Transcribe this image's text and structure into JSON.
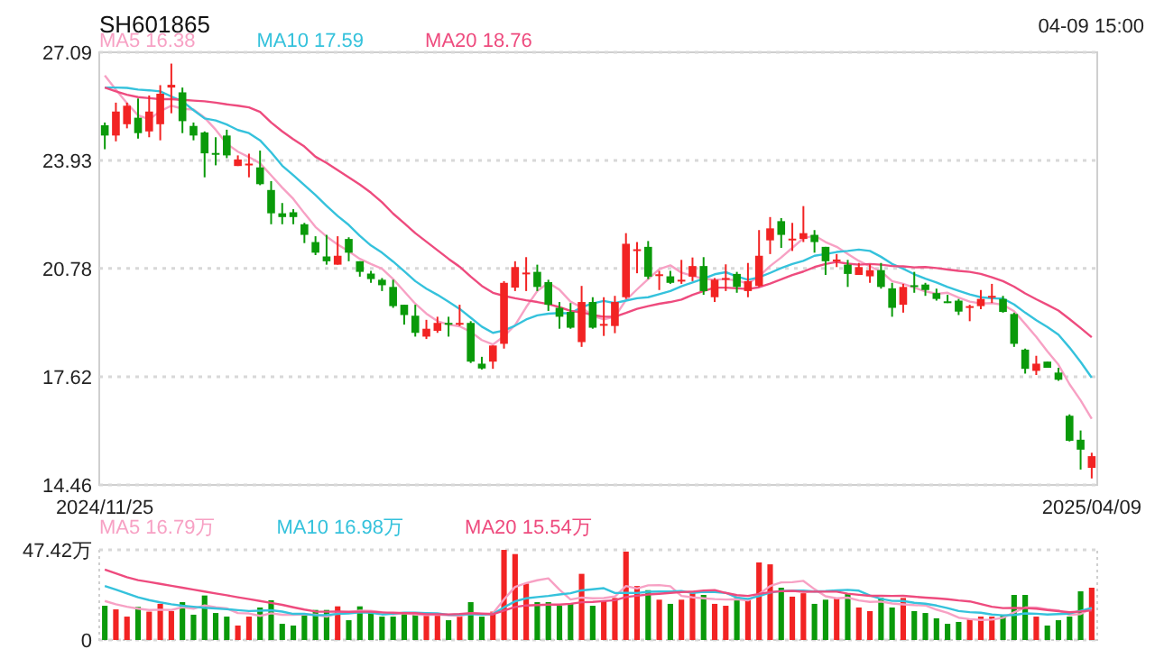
{
  "chart_data": [
    {
      "type": "candlestick",
      "title": "SH601865",
      "annotations": [
        "04-09 15:00"
      ],
      "legend": "top left",
      "grid": "y",
      "categories": [
        "2024/11/25",
        null,
        null,
        null,
        null,
        null,
        null,
        null,
        null,
        null,
        null,
        null,
        null,
        null,
        null,
        null,
        null,
        null,
        null,
        null,
        null,
        null,
        null,
        null,
        null,
        null,
        null,
        null,
        null,
        null,
        null,
        null,
        null,
        null,
        null,
        null,
        null,
        null,
        null,
        null,
        null,
        null,
        null,
        null,
        null,
        null,
        null,
        null,
        null,
        null,
        null,
        null,
        null,
        null,
        null,
        null,
        null,
        null,
        null,
        null,
        null,
        null,
        null,
        null,
        null,
        null,
        null,
        null,
        null,
        null,
        null,
        null,
        null,
        null,
        null,
        null,
        null,
        null,
        null,
        null,
        null,
        null,
        null,
        null,
        null,
        null,
        null,
        null,
        null,
        "2025/04/09"
      ],
      "ylim": [
        14.46,
        27.09
      ],
      "yticks": [
        14.46,
        17.62,
        20.78,
        23.93,
        27.09
      ],
      "ohlc": [
        [
          24.96,
          25.04,
          24.26,
          24.66
        ],
        [
          24.66,
          25.62,
          24.49,
          25.36
        ],
        [
          24.99,
          25.62,
          24.87,
          25.53
        ],
        [
          25.18,
          25.74,
          24.57,
          24.73
        ],
        [
          24.78,
          25.83,
          24.61,
          25.36
        ],
        [
          24.99,
          26.13,
          24.52,
          25.88
        ],
        [
          26.06,
          26.76,
          25.31,
          26.14
        ],
        [
          25.92,
          26.06,
          24.73,
          25.08
        ],
        [
          24.94,
          25.04,
          24.52,
          24.66
        ],
        [
          24.75,
          24.78,
          23.44,
          24.14
        ],
        [
          24.15,
          24.61,
          23.79,
          24.13
        ],
        [
          24.66,
          24.83,
          24.0,
          24.08
        ],
        [
          23.77,
          24.08,
          23.77,
          23.96
        ],
        [
          23.82,
          24.13,
          23.44,
          23.84
        ],
        [
          23.73,
          24.22,
          23.21,
          23.24
        ],
        [
          23.07,
          23.33,
          22.07,
          22.39
        ],
        [
          22.39,
          22.69,
          22.07,
          22.28
        ],
        [
          22.42,
          22.51,
          22.07,
          22.28
        ],
        [
          22.07,
          22.11,
          21.52,
          21.76
        ],
        [
          21.55,
          21.72,
          21.17,
          21.24
        ],
        [
          21.13,
          21.76,
          20.89,
          20.99
        ],
        [
          20.89,
          21.72,
          20.89,
          21.15
        ],
        [
          21.64,
          21.69,
          20.99,
          21.24
        ],
        [
          20.99,
          20.99,
          20.54,
          20.68
        ],
        [
          20.63,
          20.71,
          20.36,
          20.47
        ],
        [
          20.45,
          20.5,
          20.12,
          20.29
        ],
        [
          20.24,
          20.45,
          19.63,
          19.68
        ],
        [
          19.72,
          19.72,
          19.14,
          19.42
        ],
        [
          19.4,
          19.72,
          18.79,
          18.9
        ],
        [
          18.79,
          19.28,
          18.72,
          19.02
        ],
        [
          18.96,
          19.37,
          18.9,
          19.19
        ],
        [
          19.19,
          19.37,
          18.79,
          19.17
        ],
        [
          19.17,
          19.72,
          19.1,
          19.19
        ],
        [
          19.19,
          19.24,
          18.02,
          18.06
        ],
        [
          18.0,
          18.2,
          17.83,
          17.86
        ],
        [
          18.06,
          18.53,
          17.85,
          18.53
        ],
        [
          18.58,
          20.41,
          18.44,
          20.36
        ],
        [
          20.22,
          20.99,
          20.12,
          20.82
        ],
        [
          20.63,
          21.11,
          20.12,
          20.66
        ],
        [
          20.68,
          20.89,
          20.12,
          20.24
        ],
        [
          20.38,
          20.45,
          19.54,
          19.72
        ],
        [
          19.63,
          19.8,
          19.02,
          19.37
        ],
        [
          19.51,
          19.77,
          19.02,
          19.05
        ],
        [
          18.63,
          20.27,
          18.49,
          19.8
        ],
        [
          19.8,
          19.94,
          19.02,
          19.05
        ],
        [
          19.14,
          19.94,
          18.81,
          19.16
        ],
        [
          19.1,
          19.98,
          18.89,
          19.8
        ],
        [
          19.94,
          21.81,
          19.89,
          21.5
        ],
        [
          21.33,
          21.55,
          20.64,
          21.34
        ],
        [
          21.41,
          21.58,
          20.47,
          20.54
        ],
        [
          20.59,
          20.71,
          20.15,
          20.61
        ],
        [
          20.55,
          20.71,
          20.33,
          20.36
        ],
        [
          20.43,
          21.03,
          20.33,
          20.45
        ],
        [
          20.54,
          21.1,
          20.41,
          20.85
        ],
        [
          20.85,
          21.11,
          20.01,
          20.12
        ],
        [
          19.94,
          20.5,
          19.8,
          20.45
        ],
        [
          20.49,
          20.9,
          20.12,
          20.5
        ],
        [
          20.62,
          20.68,
          20.07,
          20.24
        ],
        [
          20.12,
          20.94,
          19.94,
          20.41
        ],
        [
          20.27,
          21.9,
          20.24,
          21.15
        ],
        [
          21.6,
          22.28,
          21.2,
          21.95
        ],
        [
          22.16,
          22.25,
          21.38,
          21.76
        ],
        [
          21.63,
          22.11,
          21.29,
          21.65
        ],
        [
          21.64,
          22.6,
          21.55,
          21.81
        ],
        [
          21.76,
          21.9,
          21.24,
          21.55
        ],
        [
          21.41,
          21.41,
          20.59,
          20.99
        ],
        [
          21.02,
          21.2,
          20.82,
          21.04
        ],
        [
          20.89,
          21.03,
          20.24,
          20.62
        ],
        [
          20.59,
          20.94,
          20.59,
          20.82
        ],
        [
          20.55,
          20.9,
          20.36,
          20.73
        ],
        [
          20.73,
          20.94,
          20.19,
          20.24
        ],
        [
          20.2,
          20.36,
          19.37,
          19.63
        ],
        [
          19.72,
          20.33,
          19.49,
          20.24
        ],
        [
          20.29,
          20.68,
          20.07,
          20.27
        ],
        [
          20.31,
          20.36,
          19.98,
          20.15
        ],
        [
          20.06,
          20.19,
          19.84,
          19.89
        ],
        [
          19.82,
          20.01,
          19.77,
          19.8
        ],
        [
          19.84,
          19.89,
          19.42,
          19.52
        ],
        [
          19.66,
          19.72,
          19.24,
          19.68
        ],
        [
          19.68,
          20.15,
          19.59,
          19.89
        ],
        [
          19.97,
          20.33,
          19.77,
          19.98
        ],
        [
          19.89,
          19.98,
          19.49,
          19.51
        ],
        [
          19.45,
          19.49,
          18.49,
          18.58
        ],
        [
          18.41,
          18.44,
          17.71,
          17.85
        ],
        [
          17.79,
          18.23,
          17.67,
          18.0
        ],
        [
          18.06,
          18.06,
          17.88,
          17.88
        ],
        [
          17.74,
          17.88,
          17.5,
          17.53
        ],
        [
          16.48,
          16.52,
          15.73,
          15.75
        ],
        [
          15.78,
          16.05,
          14.91,
          15.49
        ],
        [
          14.96,
          15.4,
          14.65,
          15.3
        ]
      ],
      "colors": [
        "#0a9a0a",
        "#f22323",
        "#f22323",
        "#0a9a0a",
        "#f22323",
        "#f22323",
        "#f22323",
        "#0a9a0a",
        "#0a9a0a",
        "#0a9a0a",
        "#0a9a0a",
        "#0a9a0a",
        "#f22323",
        "#f22323",
        "#0a9a0a",
        "#0a9a0a",
        "#0a9a0a",
        "#0a9a0a",
        "#0a9a0a",
        "#0a9a0a",
        "#0a9a0a",
        "#f22323",
        "#0a9a0a",
        "#0a9a0a",
        "#0a9a0a",
        "#0a9a0a",
        "#0a9a0a",
        "#0a9a0a",
        "#0a9a0a",
        "#f22323",
        "#f22323",
        "#0a9a0a",
        "#f22323",
        "#0a9a0a",
        "#0a9a0a",
        "#f22323",
        "#f22323",
        "#f22323",
        "#f22323",
        "#0a9a0a",
        "#0a9a0a",
        "#0a9a0a",
        "#0a9a0a",
        "#f22323",
        "#0a9a0a",
        "#f22323",
        "#f22323",
        "#f22323",
        "#f22323",
        "#0a9a0a",
        "#f22323",
        "#0a9a0a",
        "#f22323",
        "#f22323",
        "#0a9a0a",
        "#f22323",
        "#f22323",
        "#0a9a0a",
        "#f22323",
        "#f22323",
        "#f22323",
        "#0a9a0a",
        "#f22323",
        "#f22323",
        "#0a9a0a",
        "#0a9a0a",
        "#f22323",
        "#0a9a0a",
        "#f22323",
        "#f22323",
        "#0a9a0a",
        "#0a9a0a",
        "#f22323",
        "#0a9a0a",
        "#0a9a0a",
        "#0a9a0a",
        "#0a9a0a",
        "#0a9a0a",
        "#f22323",
        "#f22323",
        "#f22323",
        "#0a9a0a",
        "#0a9a0a",
        "#0a9a0a",
        "#f22323",
        "#0a9a0a",
        "#0a9a0a",
        "#0a9a0a",
        "#0a9a0a",
        "#f22323"
      ],
      "series": [
        {
          "name": "MA5 16.38",
          "type": "line",
          "color": "#f7a1c4",
          "values": [
            26.41,
            26.0,
            25.6,
            25.25,
            25.13,
            25.37,
            25.53,
            25.44,
            25.42,
            25.18,
            24.83,
            24.42,
            24.19,
            24.03,
            23.85,
            23.5,
            23.14,
            22.81,
            22.39,
            21.99,
            21.71,
            21.48,
            21.28,
            21.06,
            20.91,
            20.77,
            20.47,
            20.11,
            19.75,
            19.46,
            19.24,
            19.14,
            19.09,
            18.93,
            18.69,
            18.56,
            18.8,
            19.13,
            19.65,
            20.12,
            20.36,
            20.16,
            19.81,
            19.64,
            19.4,
            19.29,
            19.37,
            19.86,
            20.17,
            20.47,
            20.76,
            20.87,
            20.66,
            20.56,
            20.48,
            20.45,
            20.47,
            20.43,
            20.34,
            20.55,
            20.85,
            21.1,
            21.38,
            21.66,
            21.74,
            21.55,
            21.41,
            21.2,
            21.0,
            20.84,
            20.69,
            20.41,
            20.33,
            20.22,
            20.11,
            20.04,
            20.07,
            19.93,
            19.81,
            19.76,
            19.77,
            19.72,
            19.53,
            19.16,
            18.78,
            18.36,
            17.97,
            17.4,
            16.93,
            16.39
          ]
        },
        {
          "name": "MA10 17.59",
          "type": "line",
          "color": "#35c2dc",
          "values": [
            26.06,
            26.06,
            26.05,
            26.0,
            25.98,
            25.95,
            25.8,
            25.66,
            25.4,
            25.16,
            25.1,
            24.98,
            24.82,
            24.73,
            24.52,
            24.17,
            23.78,
            23.5,
            23.21,
            22.92,
            22.61,
            22.31,
            22.05,
            21.73,
            21.45,
            21.24,
            20.98,
            20.7,
            20.41,
            20.19,
            20.01,
            19.81,
            19.6,
            19.34,
            19.08,
            18.9,
            18.97,
            19.11,
            19.29,
            19.41,
            19.46,
            19.48,
            19.47,
            19.65,
            19.76,
            19.83,
            19.77,
            19.84,
            19.91,
            19.94,
            20.03,
            20.12,
            20.26,
            20.37,
            20.48,
            20.61,
            20.67,
            20.55,
            20.45,
            20.52,
            20.65,
            20.79,
            20.91,
            21.0,
            21.15,
            21.2,
            21.26,
            21.29,
            21.33,
            21.29,
            21.12,
            20.91,
            20.77,
            20.61,
            20.48,
            20.37,
            20.24,
            20.13,
            20.02,
            19.94,
            19.91,
            19.9,
            19.73,
            19.49,
            19.27,
            19.07,
            18.85,
            18.47,
            18.05,
            17.59
          ]
        },
        {
          "name": "MA20 18.76",
          "type": "line",
          "color": "#ee4b7e",
          "values": [
            26.06,
            25.95,
            25.85,
            25.78,
            25.75,
            25.72,
            25.72,
            25.7,
            25.68,
            25.66,
            25.62,
            25.57,
            25.53,
            25.48,
            25.35,
            25.04,
            24.78,
            24.55,
            24.34,
            24.04,
            23.86,
            23.65,
            23.44,
            23.23,
            22.99,
            22.71,
            22.38,
            22.1,
            21.81,
            21.56,
            21.31,
            21.06,
            20.83,
            20.54,
            20.27,
            20.07,
            19.98,
            19.91,
            19.85,
            19.8,
            19.74,
            19.65,
            19.54,
            19.5,
            19.42,
            19.37,
            19.37,
            19.48,
            19.6,
            19.68,
            19.75,
            19.8,
            19.87,
            20.01,
            20.12,
            20.22,
            20.22,
            20.2,
            20.18,
            20.23,
            20.34,
            20.46,
            20.59,
            20.69,
            20.82,
            20.91,
            20.97,
            20.92,
            20.89,
            20.91,
            20.89,
            20.85,
            20.84,
            20.81,
            20.82,
            20.79,
            20.75,
            20.71,
            20.68,
            20.62,
            20.52,
            20.41,
            20.25,
            20.05,
            19.88,
            19.72,
            19.55,
            19.3,
            19.04,
            18.77
          ]
        }
      ]
    },
    {
      "type": "bar",
      "legend": "top left",
      "grid": "y",
      "categories": [
        null,
        null,
        null,
        null,
        null,
        null,
        null,
        null,
        null,
        null,
        null,
        null,
        null,
        null,
        null,
        null,
        null,
        null,
        null,
        null,
        null,
        null,
        null,
        null,
        null,
        null,
        null,
        null,
        null,
        null,
        null,
        null,
        null,
        null,
        null,
        null,
        null,
        null,
        null,
        null,
        null,
        null,
        null,
        null,
        null,
        null,
        null,
        null,
        null,
        null,
        null,
        null,
        null,
        null,
        null,
        null,
        null,
        null,
        null,
        null,
        null,
        null,
        null,
        null,
        null,
        null,
        null,
        null,
        null,
        null,
        null,
        null,
        null,
        null,
        null,
        null,
        null,
        null,
        null,
        null,
        null,
        null,
        null,
        null,
        null,
        null,
        null,
        null,
        null,
        null
      ],
      "ylim": [
        0,
        47.42
      ],
      "yticks": [
        0,
        {
          "value": 47.42,
          "label": "47.42万"
        }
      ],
      "series": [
        {
          "type": "bar",
          "values": [
            18.0,
            16.1,
            12.3,
            17.4,
            14.9,
            19.0,
            15.2,
            19.9,
            13.3,
            23.4,
            14.2,
            12.3,
            7.6,
            12.3,
            17.1,
            20.9,
            8.5,
            7.6,
            13.6,
            15.8,
            15.8,
            17.7,
            10.4,
            17.7,
            14.9,
            12.3,
            12.3,
            13.6,
            13.6,
            13.6,
            13.6,
            10.4,
            12.3,
            19.9,
            12.3,
            14.9,
            47.4,
            45.2,
            29.7,
            19.9,
            19.9,
            18.0,
            19.0,
            34.8,
            18.0,
            20.5,
            22.1,
            46.5,
            28.4,
            26.2,
            21.2,
            19.0,
            21.2,
            24.6,
            23.7,
            19.0,
            18.0,
            22.1,
            21.2,
            40.8,
            39.8,
            27.5,
            22.8,
            24.6,
            19.0,
            21.2,
            22.1,
            24.6,
            17.1,
            15.2,
            22.1,
            17.1,
            22.1,
            15.2,
            14.2,
            11.4,
            8.5,
            9.5,
            11.1,
            12.3,
            12.3,
            13.3,
            23.7,
            23.7,
            12.3,
            7.6,
            10.4,
            12.3,
            25.6,
            27.5
          ],
          "colors": [
            "#0a9a0a",
            "#f22323",
            "#f22323",
            "#0a9a0a",
            "#f22323",
            "#f22323",
            "#f22323",
            "#0a9a0a",
            "#0a9a0a",
            "#0a9a0a",
            "#0a9a0a",
            "#0a9a0a",
            "#f22323",
            "#f22323",
            "#0a9a0a",
            "#0a9a0a",
            "#0a9a0a",
            "#0a9a0a",
            "#0a9a0a",
            "#0a9a0a",
            "#0a9a0a",
            "#f22323",
            "#0a9a0a",
            "#0a9a0a",
            "#0a9a0a",
            "#0a9a0a",
            "#0a9a0a",
            "#0a9a0a",
            "#0a9a0a",
            "#f22323",
            "#f22323",
            "#0a9a0a",
            "#f22323",
            "#0a9a0a",
            "#0a9a0a",
            "#f22323",
            "#f22323",
            "#f22323",
            "#f22323",
            "#0a9a0a",
            "#0a9a0a",
            "#0a9a0a",
            "#0a9a0a",
            "#f22323",
            "#0a9a0a",
            "#f22323",
            "#f22323",
            "#f22323",
            "#f22323",
            "#0a9a0a",
            "#f22323",
            "#0a9a0a",
            "#f22323",
            "#f22323",
            "#0a9a0a",
            "#f22323",
            "#f22323",
            "#0a9a0a",
            "#f22323",
            "#f22323",
            "#f22323",
            "#0a9a0a",
            "#f22323",
            "#f22323",
            "#0a9a0a",
            "#0a9a0a",
            "#f22323",
            "#0a9a0a",
            "#f22323",
            "#f22323",
            "#0a9a0a",
            "#0a9a0a",
            "#f22323",
            "#0a9a0a",
            "#0a9a0a",
            "#0a9a0a",
            "#0a9a0a",
            "#0a9a0a",
            "#f22323",
            "#f22323",
            "#f22323",
            "#0a9a0a",
            "#0a9a0a",
            "#0a9a0a",
            "#f22323",
            "#0a9a0a",
            "#0a9a0a",
            "#0a9a0a",
            "#0a9a0a",
            "#f22323"
          ]
        },
        {
          "name": "MA5 16.79万",
          "type": "line",
          "color": "#f7a1c4",
          "values": [
            20.5,
            18.8,
            17.5,
            16.5,
            15.74,
            15.94,
            15.76,
            17.28,
            16.46,
            18.16,
            17.2,
            16.62,
            14.16,
            13.96,
            12.7,
            14.04,
            13.28,
            13.28,
            13.54,
            13.28,
            12.26,
            14.1,
            14.66,
            15.48,
            15.3,
            14.6,
            13.52,
            14.16,
            13.34,
            13.08,
            13.34,
            12.96,
            12.7,
            13.96,
            13.7,
            13.96,
            21.36,
            27.94,
            29.9,
            31.42,
            32.42,
            26.54,
            21.3,
            22.32,
            21.94,
            22.06,
            22.88,
            28.38,
            27.1,
            28.74,
            28.88,
            28.26,
            23.2,
            22.44,
            21.94,
            21.5,
            21.3,
            21.48,
            20.8,
            24.22,
            28.38,
            30.28,
            30.42,
            31.1,
            26.74,
            23.02,
            21.94,
            22.3,
            20.8,
            20.04,
            20.22,
            19.22,
            18.72,
            18.34,
            18.14,
            16.0,
            14.28,
            11.76,
            10.94,
            10.56,
            10.74,
            11.7,
            14.54,
            17.06,
            17.06,
            16.12,
            15.54,
            13.26,
            13.64,
            16.68
          ]
        },
        {
          "name": "MA10 16.98万",
          "type": "line",
          "color": "#35c2dc",
          "values": [
            28.4,
            26.5,
            24.5,
            22.5,
            21.0,
            19.8,
            18.8,
            18.0,
            17.5,
            16.95,
            16.57,
            16.19,
            15.72,
            15.21,
            15.43,
            15.62,
            14.95,
            13.72,
            13.75,
            12.99,
            13.15,
            13.69,
            13.97,
            14.51,
            14.29,
            13.43,
            13.81,
            14.41,
            14.41,
            14.19,
            13.97,
            13.24,
            13.43,
            13.65,
            13.39,
            13.65,
            17.16,
            20.32,
            21.93,
            22.56,
            23.19,
            23.95,
            24.62,
            26.11,
            26.68,
            27.24,
            24.71,
            24.84,
            24.71,
            25.34,
            25.47,
            25.57,
            25.79,
            24.77,
            25.34,
            25.19,
            24.78,
            22.34,
            21.62,
            23.08,
            24.94,
            25.79,
            25.95,
            25.95,
            25.48,
            25.7,
            26.11,
            26.36,
            25.95,
            23.39,
            21.62,
            20.58,
            20.51,
            19.57,
            19.09,
            18.11,
            16.75,
            15.24,
            14.64,
            14.35,
            13.37,
            12.99,
            13.15,
            14.0,
            13.81,
            13.43,
            13.62,
            13.9,
            15.35,
            16.87
          ]
        },
        {
          "name": "MA20 15.54万",
          "type": "line",
          "color": "#ee4b7e",
          "values": [
            37.0,
            35.0,
            33.0,
            31.5,
            30.5,
            29.5,
            28.5,
            27.5,
            26.5,
            25.5,
            24.5,
            23.5,
            22.5,
            21.5,
            20.5,
            19.5,
            18.5,
            17.2,
            16.0,
            14.97,
            14.86,
            14.94,
            14.85,
            14.86,
            14.86,
            14.53,
            14.38,
            14.07,
            14.08,
            13.59,
            13.56,
            13.47,
            13.7,
            14.08,
            13.84,
            13.54,
            15.49,
            17.37,
            18.17,
            18.38,
            18.58,
            18.6,
            19.03,
            19.88,
            20.04,
            20.45,
            20.94,
            22.58,
            23.32,
            23.95,
            24.33,
            24.76,
            25.21,
            25.44,
            26.01,
            26.22,
            24.75,
            23.59,
            23.17,
            24.21,
            25.21,
            25.68,
            25.87,
            25.36,
            25.41,
            25.45,
            25.45,
            24.35,
            23.79,
            23.24,
            23.28,
            23.19,
            23.23,
            22.76,
            22.29,
            21.91,
            21.43,
            20.8,
            20.3,
            18.87,
            17.5,
            16.79,
            16.83,
            16.79,
            16.45,
            15.77,
            15.19,
            14.57,
            15.0,
            15.61
          ]
        }
      ]
    }
  ]
}
